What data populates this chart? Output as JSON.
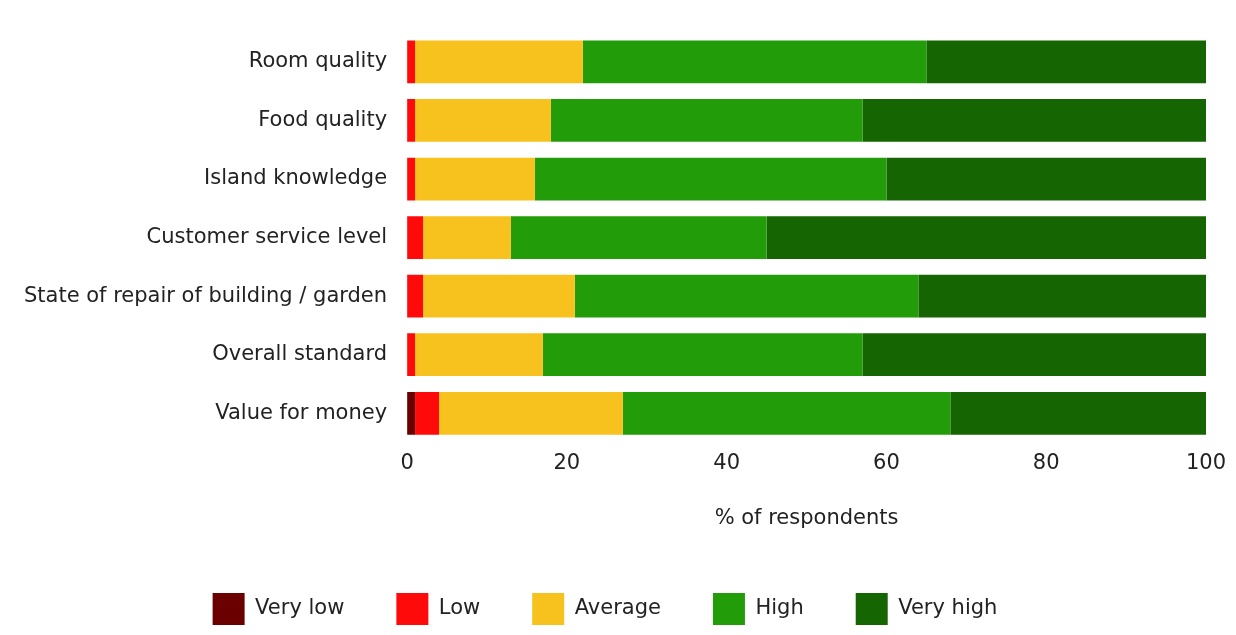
{
  "chart_data": {
    "type": "bar",
    "orientation": "horizontal",
    "stacked": true,
    "xlabel": "% of respondents",
    "categories": [
      "Room quality",
      "Food quality",
      "Island knowledge",
      "Customer service level",
      "State of repair of building / garden",
      "Overall standard",
      "Value for money"
    ],
    "series": [
      {
        "name": "Very low",
        "color": "#6b0000",
        "values": [
          0,
          0,
          0,
          0,
          0,
          0,
          1
        ]
      },
      {
        "name": "Low",
        "color": "#ff0a0a",
        "values": [
          1,
          1,
          1,
          2,
          2,
          1,
          3
        ]
      },
      {
        "name": "Average",
        "color": "#f7c11e",
        "values": [
          21,
          17,
          15,
          11,
          19,
          16,
          23
        ]
      },
      {
        "name": "High",
        "color": "#229c08",
        "values": [
          43,
          39,
          44,
          32,
          43,
          40,
          41
        ]
      },
      {
        "name": "Very high",
        "color": "#156603",
        "values": [
          35,
          43,
          40,
          55,
          36,
          43,
          32
        ]
      }
    ],
    "xlim": [
      0,
      100
    ],
    "xticks": [
      0,
      20,
      40,
      60,
      80,
      100
    ],
    "grid": false,
    "legend": "bottom"
  }
}
